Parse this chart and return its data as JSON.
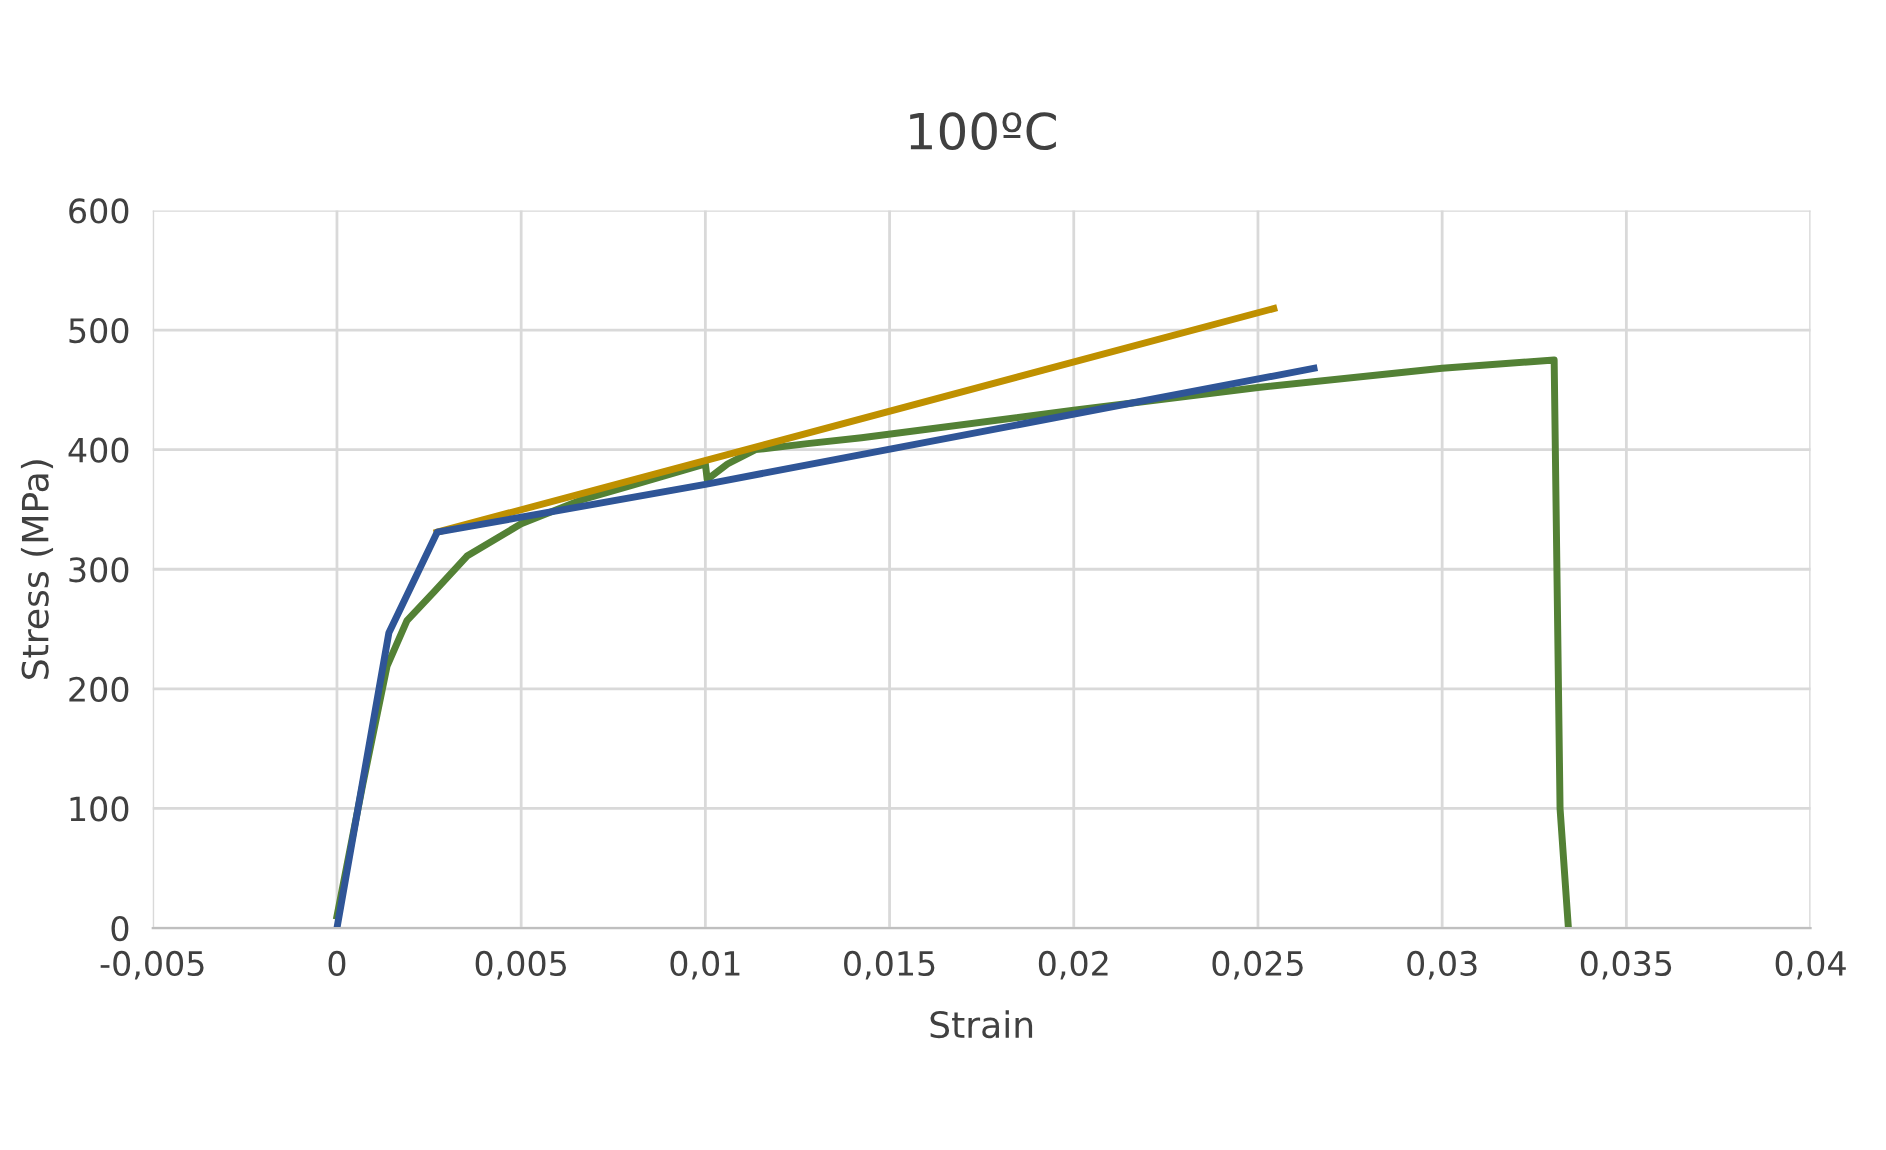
{
  "chart_data": {
    "type": "line",
    "title": "100ºC",
    "xlabel": "Strain",
    "ylabel": "Stress (MPa)",
    "xlim": [
      -0.005,
      0.04
    ],
    "xticks": [
      {
        "value": -0.005,
        "label": "-0,005"
      },
      {
        "value": 0,
        "label": "0"
      },
      {
        "value": 0.005,
        "label": "0,005"
      },
      {
        "value": 0.01,
        "label": "0,01"
      },
      {
        "value": 0.015,
        "label": "0,015"
      },
      {
        "value": 0.02,
        "label": "0,02"
      },
      {
        "value": 0.025,
        "label": "0,025"
      },
      {
        "value": 0.03,
        "label": "0,03"
      },
      {
        "value": 0.035,
        "label": "0,035"
      },
      {
        "value": 0.04,
        "label": "0,04"
      }
    ],
    "ylim": [
      0,
      600
    ],
    "yticks": [
      0,
      100,
      200,
      300,
      400,
      500,
      600
    ],
    "grid": true,
    "marker": "none",
    "line_style": "solid",
    "series": [
      {
        "color": "#538135",
        "x": [
          0,
          0.0007,
          0.00136,
          0.0019,
          0.00266,
          0.00353,
          0.005,
          0.00663,
          0.008,
          0.01,
          0.01005,
          0.0106,
          0.01136,
          0.01277,
          0.01424,
          0.02,
          0.025,
          0.03,
          0.03304,
          0.0332,
          0.03342
        ],
        "values": [
          10,
          120,
          219,
          257,
          282,
          311,
          338,
          358,
          370,
          388,
          375,
          388,
          400,
          405,
          410,
          433,
          452,
          468,
          475,
          100,
          3
        ]
      },
      {
        "color": "#bf9000",
        "x": [
          0.00272,
          0.02543
        ],
        "values": [
          331,
          518
        ]
      },
      {
        "color": "#2f5597",
        "x": [
          0,
          0.00141,
          0.00272,
          0.01,
          0.02652
        ],
        "values": [
          0,
          247,
          331,
          371,
          468
        ]
      }
    ]
  }
}
